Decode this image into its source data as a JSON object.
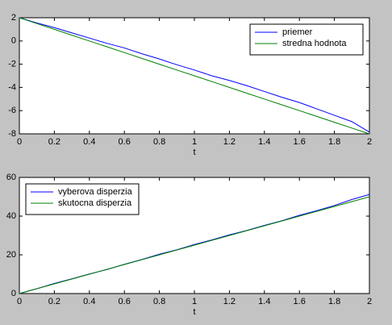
{
  "chart_data": [
    {
      "type": "line",
      "xlabel": "t",
      "x": [
        0,
        0.1,
        0.2,
        0.3,
        0.4,
        0.5,
        0.6,
        0.7,
        0.8,
        0.9,
        1,
        1.1,
        1.2,
        1.3,
        1.4,
        1.5,
        1.6,
        1.7,
        1.8,
        1.9,
        2
      ],
      "series": [
        {
          "name": "priemer",
          "color": "#0000ff",
          "values": [
            2,
            1.55,
            1.15,
            0.7,
            0.25,
            -0.2,
            -0.6,
            -1.1,
            -1.55,
            -2.05,
            -2.5,
            -3.0,
            -3.4,
            -3.85,
            -4.35,
            -4.85,
            -5.3,
            -5.85,
            -6.4,
            -6.95,
            -7.85
          ]
        },
        {
          "name": "stredna hodnota",
          "color": "#008000",
          "values": [
            2,
            1.5,
            1,
            0.5,
            0,
            -0.5,
            -1,
            -1.5,
            -2,
            -2.5,
            -3,
            -3.5,
            -4,
            -4.5,
            -5,
            -5.5,
            -6,
            -6.5,
            -7,
            -7.5,
            -8
          ]
        }
      ],
      "xlim": [
        0,
        2
      ],
      "xticks": [
        0,
        0.2,
        0.4,
        0.6,
        0.8,
        1,
        1.2,
        1.4,
        1.6,
        1.8,
        2
      ],
      "ylim": [
        -8,
        2
      ],
      "yticks": [
        -8,
        -6,
        -4,
        -2,
        0,
        2
      ],
      "legend": "upper-right"
    },
    {
      "type": "line",
      "xlabel": "t",
      "x": [
        0,
        0.1,
        0.2,
        0.3,
        0.4,
        0.5,
        0.6,
        0.7,
        0.8,
        0.9,
        1,
        1.1,
        1.2,
        1.3,
        1.4,
        1.5,
        1.6,
        1.7,
        1.8,
        1.9,
        2
      ],
      "series": [
        {
          "name": "vyberova disperzia",
          "color": "#0000ff",
          "values": [
            0,
            2.5,
            5.2,
            7.6,
            10.1,
            12.4,
            15.1,
            17.6,
            20.3,
            22.6,
            25.3,
            27.7,
            30.3,
            32.6,
            35.2,
            37.6,
            40.4,
            42.8,
            45.5,
            48.6,
            51.2
          ]
        },
        {
          "name": "skutocna disperzia",
          "color": "#008000",
          "values": [
            0,
            2.5,
            5,
            7.5,
            10,
            12.5,
            15,
            17.5,
            20,
            22.5,
            25,
            27.5,
            30,
            32.5,
            35,
            37.5,
            40,
            42.5,
            45,
            47.5,
            50
          ]
        }
      ],
      "xlim": [
        0,
        2
      ],
      "xticks": [
        0,
        0.2,
        0.4,
        0.6,
        0.8,
        1,
        1.2,
        1.4,
        1.6,
        1.8,
        2
      ],
      "ylim": [
        0,
        60
      ],
      "yticks": [
        0,
        20,
        40,
        60
      ],
      "legend": "upper-left"
    }
  ]
}
